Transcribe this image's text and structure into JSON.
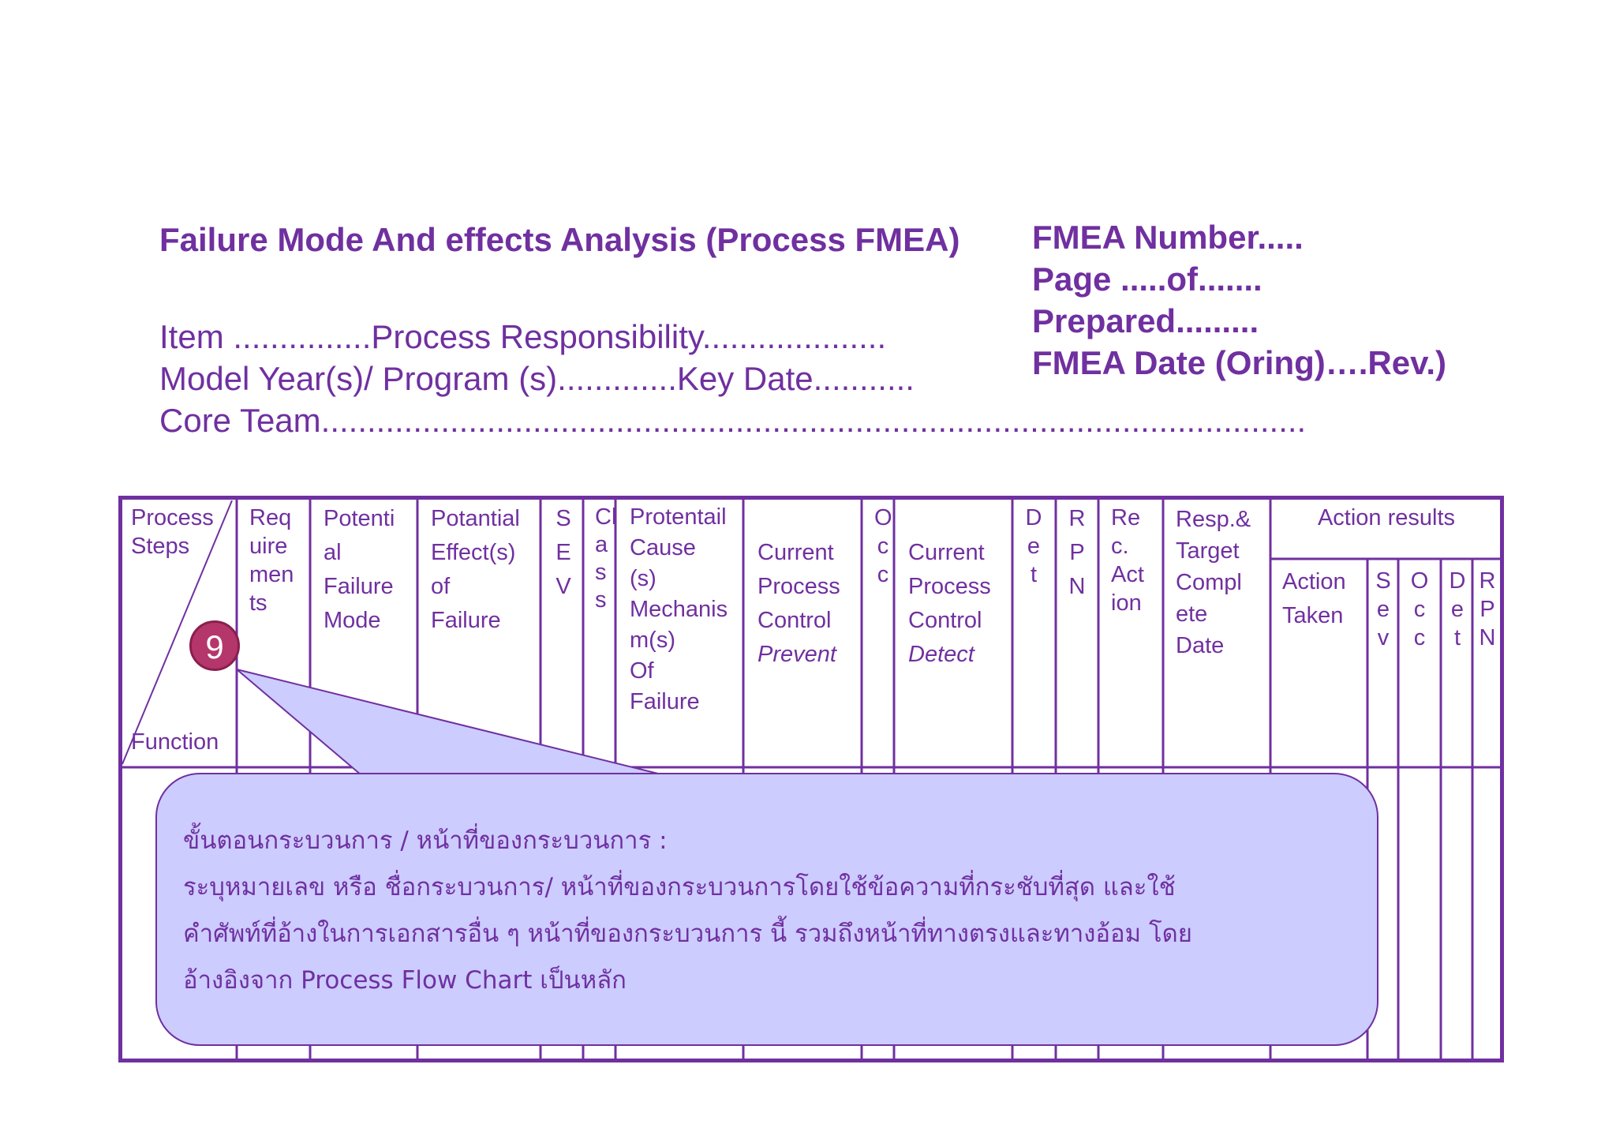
{
  "header": {
    "title": "Failure Mode And effects Analysis (Process FMEA)",
    "item_line": "Item ...............Process Responsibility....................",
    "model_line": "Model Year(s)/ Program (s).............Key Date...........",
    "team_line": "Core Team...........................................................................................................",
    "fmea_number": "FMEA Number.....",
    "page": "Page .....of.......",
    "prepared": "Prepared.........",
    "fmea_date": "FMEA Date (Oring)….Rev.)"
  },
  "table": {
    "col_process_steps": "Process\nSteps",
    "col_function": "Function",
    "col_requirements": "Req\nuire\nmen\nts",
    "col_potential_failure_mode": "Potenti\nal\nFailure\nMode",
    "col_potential_effects": "Potantial\nEffect(s)\nof\nFailure",
    "col_sev": "S\nE\nV",
    "col_class": "Cl\na\ns\ns",
    "col_potential_cause": "Protentail\nCause\n(s)\nMechanis\nm(s)\nOf\nFailure",
    "col_control_prevent": "Current\nProcess\nControl",
    "col_control_prevent_sub": "Prevent",
    "col_occ": "O\nc\nc",
    "col_control_detect": "Current\nProcess\nControl",
    "col_control_detect_sub": "Detect",
    "col_det": "D\ne\nt",
    "col_rpn": "R\nP\nN",
    "col_rec_action": "Re\nc.\nAct\nion",
    "col_resp_target": "Resp.&\nTarget\nCompl\nete\nDate",
    "col_action_results": "Action results",
    "col_action_taken": "Action\nTaken",
    "col_res_sev": "S\ne\nv",
    "col_res_occ": "O\nc\nc",
    "col_res_det": "D\ne\nt",
    "col_res_rpn": "R\nP\nN"
  },
  "badge_number": "9",
  "callout": {
    "line1": "ขั้นตอนกระบวนการ / หน้าที่ของกระบวนการ :",
    "line2": "ระบุหมายเลข หรือ ชื่อกระบวนการ/ หน้าที่ของกระบวนการโดยใช้ข้อความที่กระชับที่สุด และใช้",
    "line3": "คำศัพท์ที่อ้างในการเอกสารอื่น ๆ หน้าที่ของกระบวนการ นี้ รวมถึงหน้าที่ทางตรงและทางอ้อม โดย",
    "line4": "อ้างอิงจาก Process Flow Chart เป็นหลัก"
  },
  "colors": {
    "text_purple": "#7030a0",
    "callout_fill": "#ccccff",
    "badge_fill": "#b5366a"
  }
}
